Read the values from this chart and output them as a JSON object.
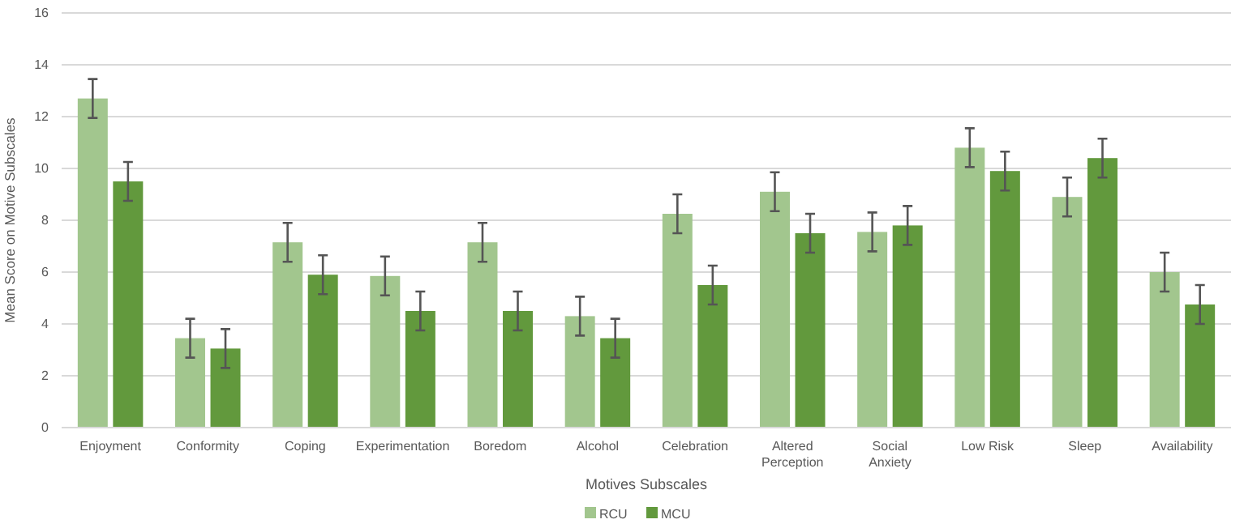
{
  "chart_data": {
    "type": "bar",
    "xlabel": "Motives Subscales",
    "ylabel": "Mean Score on Motive Subscales",
    "categories": [
      "Enjoyment",
      "Conformity",
      "Coping",
      "Experimentation",
      "Boredom",
      "Alcohol",
      "Celebration",
      "Altered Perception",
      "Social Anxiety",
      "Low Risk",
      "Sleep",
      "Availability"
    ],
    "series": [
      {
        "name": "RCU",
        "color": "#a2c68e",
        "values": [
          12.7,
          3.45,
          7.15,
          5.85,
          7.15,
          4.3,
          8.25,
          9.1,
          7.55,
          10.8,
          8.9,
          6.0
        ],
        "errors": [
          0.75,
          0.75,
          0.75,
          0.75,
          0.75,
          0.75,
          0.75,
          0.75,
          0.75,
          0.75,
          0.75,
          0.75
        ]
      },
      {
        "name": "MCU",
        "color": "#62993d",
        "values": [
          9.5,
          3.05,
          5.9,
          4.5,
          4.5,
          3.45,
          5.5,
          7.5,
          7.8,
          9.9,
          10.4,
          4.75
        ],
        "errors": [
          0.75,
          0.75,
          0.75,
          0.75,
          0.75,
          0.75,
          0.75,
          0.75,
          0.75,
          0.75,
          0.75,
          0.75
        ]
      }
    ],
    "ylim": [
      0,
      16
    ],
    "yticks": [
      0,
      2,
      4,
      6,
      8,
      10,
      12,
      14,
      16
    ],
    "grid": "y",
    "legend": "bottom"
  }
}
